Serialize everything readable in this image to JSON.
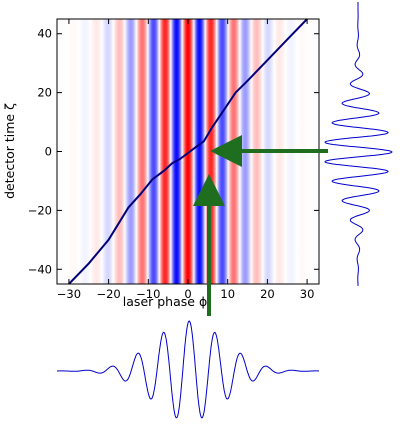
{
  "chart_data": {
    "type": "heatmap",
    "title": "",
    "xlabel": "laser phase ϕ",
    "ylabel": "detector time ζ",
    "xlim": [
      -33,
      33
    ],
    "ylim": [
      -45,
      45
    ],
    "xticks": [
      -30,
      -20,
      -10,
      0,
      10,
      20,
      30
    ],
    "yticks": [
      -40,
      -20,
      0,
      20,
      40
    ],
    "xtick_labels": [
      "−30",
      "−20",
      "−10",
      "0",
      "10",
      "20",
      "30"
    ],
    "ytick_labels": [
      "−40",
      "−20",
      "0",
      "20",
      "40"
    ],
    "heatmap": {
      "description": "field amplitude vs phase, constant along ζ",
      "colormap": "bwr",
      "carrier_period": 5.8,
      "envelope_width": 10.5,
      "center": 0
    },
    "series": [
      {
        "color": "#00007a",
        "x": [
          -30,
          -25,
          -20,
          -15,
          -12,
          -9,
          -6,
          -4,
          -2,
          0,
          2,
          4,
          6,
          9,
          12,
          15,
          20,
          25,
          30
        ],
        "y": [
          -45,
          -38,
          -30,
          -19,
          -14.5,
          -9.5,
          -6.5,
          -4,
          -2.5,
          -0.5,
          1.5,
          3.5,
          8,
          14,
          20,
          24,
          31,
          38,
          45
        ]
      }
    ],
    "projections": {
      "right_panel": {
        "axis": "detector time ζ",
        "trace_color": "#0000cc"
      },
      "bottom_panel": {
        "axis": "laser phase ϕ",
        "trace_color": "#0000cc"
      }
    },
    "annotations": [
      {
        "type": "arrow",
        "color": "#1f6e1f",
        "from": "right panel",
        "to": [
          6,
          0
        ]
      },
      {
        "type": "arrow",
        "color": "#1f6e1f",
        "from": "bottom panel",
        "to": [
          6,
          -10
        ]
      }
    ]
  }
}
